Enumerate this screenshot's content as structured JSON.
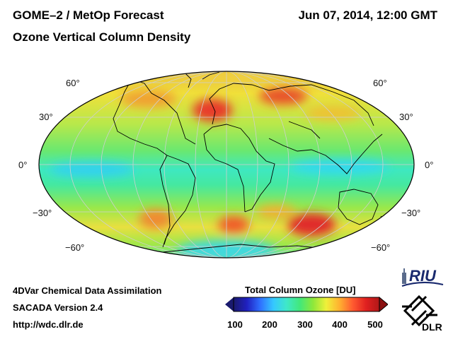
{
  "header": {
    "title_line1": "GOME–2 / MetOp Forecast",
    "title_line2": "Ozone Vertical Column Density",
    "datetime": "Jun 07, 2014, 12:00 GMT"
  },
  "map": {
    "projection": "Hammer-Aitoff",
    "latitude_labels_left": [
      "60°",
      "30°",
      "0°",
      "−30°",
      "−60°"
    ],
    "latitude_labels_right": [
      "60°",
      "30°",
      "0°",
      "−30°",
      "−60°"
    ]
  },
  "footer": {
    "line1": "4DVar Chemical Data Assimilation",
    "line2": "SACADA Version 2.4",
    "line3": "http://wdc.dlr.de"
  },
  "colorbar": {
    "title": "Total Column Ozone [DU]",
    "min": 100,
    "max": 500,
    "ticks": [
      "100",
      "200",
      "300",
      "400",
      "500"
    ],
    "colors": [
      "#1a1a6e",
      "#2020c0",
      "#2f6fff",
      "#35c8ff",
      "#3fe8c8",
      "#42e87a",
      "#8ee83a",
      "#f0f03a",
      "#ffb030",
      "#ff5a30",
      "#e02020",
      "#b01818"
    ]
  },
  "logos": {
    "riu": "RIU",
    "dlr": "DLR"
  }
}
